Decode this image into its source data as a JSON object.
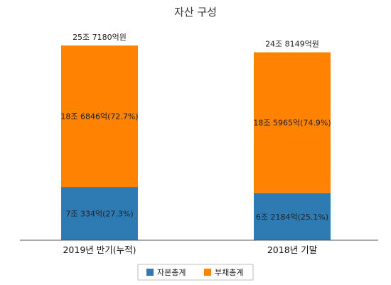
{
  "chart_data": {
    "type": "bar",
    "stacked": true,
    "title": "자산 구성",
    "categories": [
      "2019년 반기(누적)",
      "2018년 기말"
    ],
    "ylim": [
      0,
      27.5
    ],
    "grid": false,
    "legend_placement": "bottom",
    "series": [
      {
        "name": "자본총계",
        "color": "#2e7bb4",
        "values": [
          7.0334,
          6.2184
        ],
        "labels": [
          "7조 334억(27.3%)",
          "6조 2184억(25.1%)"
        ]
      },
      {
        "name": "부채총계",
        "color": "#ff8200",
        "values": [
          18.6846,
          18.5965
        ],
        "labels": [
          "18조 6846억(72.7%)",
          "18조 5965억(74.9%)"
        ]
      }
    ],
    "totals": [
      25.718,
      24.8149
    ],
    "total_labels": [
      "25조 7180억원",
      "24조 8149억원"
    ]
  }
}
